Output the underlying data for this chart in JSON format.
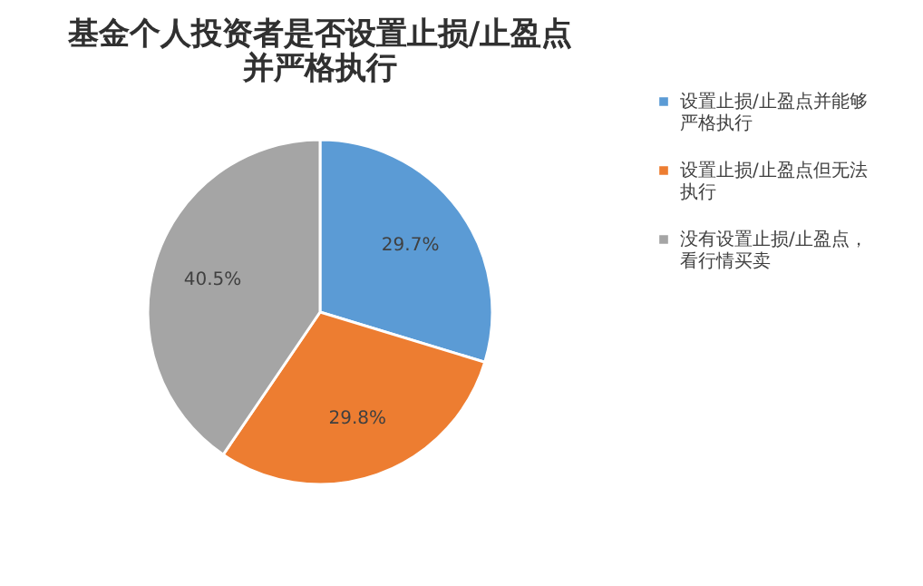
{
  "chart_data": {
    "type": "pie",
    "title": "基金个人投资者是否设置止损/止盈点并严格执行",
    "categories": [
      "设置止损/止盈点并能够严格执行",
      "设置止损/止盈点但无法执行",
      "没有设置止损/止盈点，看行情买卖"
    ],
    "values": [
      29.7,
      29.8,
      40.5
    ],
    "colors": [
      "#5b9bd5",
      "#ed7d31",
      "#a5a5a5"
    ],
    "value_labels": [
      "29.7%",
      "29.8%",
      "40.5%"
    ],
    "legend": "right"
  }
}
